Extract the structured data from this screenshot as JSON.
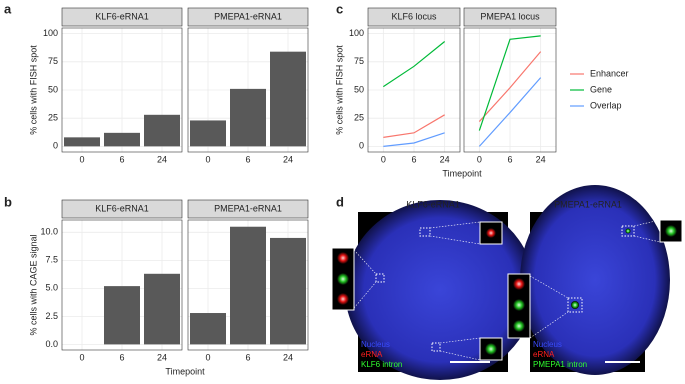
{
  "panel_labels": [
    "a",
    "b",
    "c",
    "d"
  ],
  "chart_data": [
    {
      "type": "bar",
      "y_label": "% cells with FISH spot",
      "facets": [
        "KLF6-eRNA1",
        "PMEPA1-eRNA1"
      ],
      "categories": [
        "0",
        "6",
        "24"
      ],
      "values": [
        [
          8,
          12,
          28
        ],
        [
          23,
          51,
          84
        ]
      ],
      "color": "#595959",
      "ylim": [
        -5,
        105
      ],
      "yticks": [
        0,
        25,
        50,
        75,
        100
      ],
      "grid": true
    },
    {
      "type": "bar",
      "y_label": "% cells with CAGE signal",
      "x_label": "Timepoint",
      "facets": [
        "KLF6-eRNA1",
        "PMEPA1-eRNA1"
      ],
      "categories": [
        "0",
        "6",
        "24"
      ],
      "values": [
        [
          0,
          5.2,
          6.3
        ],
        [
          2.8,
          10.5,
          9.5
        ]
      ],
      "color": "#595959",
      "ylim": [
        -0.5,
        11.1
      ],
      "yticks": [
        {
          "value": 0,
          "label": "0.0"
        },
        {
          "value": 2.5,
          "label": "2.5"
        },
        {
          "value": 5,
          "label": "5.0"
        },
        {
          "value": 7.5,
          "label": "7.5"
        },
        {
          "value": 10,
          "label": "10.0"
        }
      ],
      "grid": true
    },
    {
      "type": "line",
      "y_label": "% cells with FISH spot",
      "x_label": "Timepoint",
      "facets": [
        "KLF6 locus",
        "PMEPA1 locus"
      ],
      "categories": [
        "0",
        "6",
        "24"
      ],
      "series": [
        {
          "name": "Enhancer",
          "color": "#f8766d",
          "values": [
            [
              8,
              12,
              28
            ],
            [
              22,
              52,
              84
            ]
          ]
        },
        {
          "name": "Gene",
          "color": "#00ba38",
          "values": [
            [
              53,
              71,
              93
            ],
            [
              14,
              95,
              98
            ]
          ]
        },
        {
          "name": "Overlap",
          "color": "#619cff",
          "values": [
            [
              0,
              3,
              12
            ],
            [
              0,
              30,
              61
            ]
          ]
        }
      ],
      "ylim": [
        -5,
        105
      ],
      "yticks": [
        0,
        25,
        50,
        75,
        100
      ],
      "grid": true,
      "legend": "right"
    }
  ],
  "microscopy": [
    {
      "title": "KLF6-eRNA1",
      "legend": [
        "Nucleus",
        "eRNA",
        "KLF6 intron"
      ]
    },
    {
      "title": "PMEPA1-eRNA1",
      "legend": [
        "Nucleus",
        "eRNA",
        "PMEPA1 intron"
      ]
    }
  ]
}
